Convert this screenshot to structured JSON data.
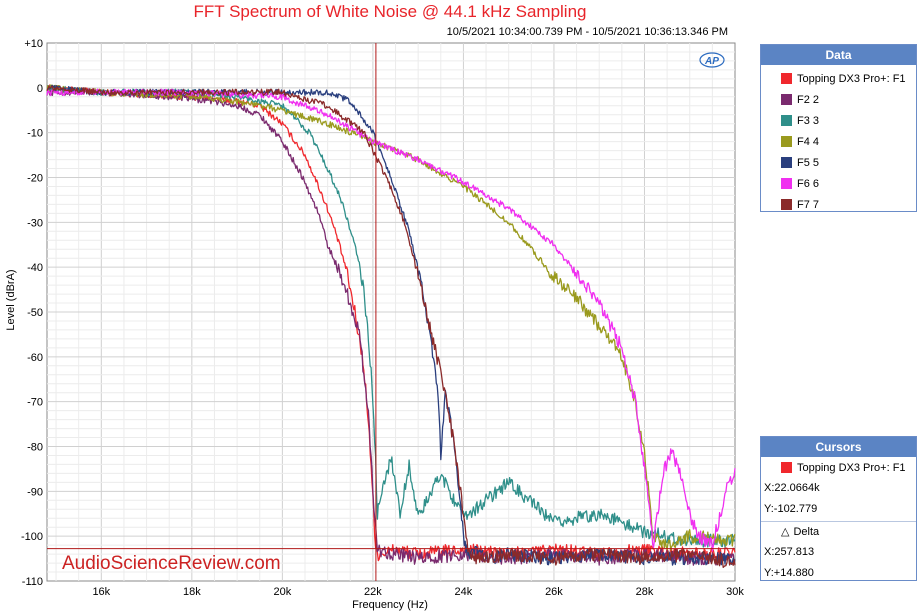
{
  "chart_data": {
    "type": "line",
    "title": "FFT Spectrum of White Noise @ 44.1 kHz Sampling",
    "subtitle": "10/5/2021 10:34:00.739 PM - 10/5/2021 10:36:13.346 PM",
    "xlabel": "Frequency (Hz)",
    "ylabel": "Level (dBrA)",
    "xlim": [
      14800,
      30000
    ],
    "ylim": [
      -110,
      10
    ],
    "xticks": [
      "16k",
      "18k",
      "20k",
      "22k",
      "24k",
      "26k",
      "28k",
      "30k"
    ],
    "xtick_values": [
      16000,
      18000,
      20000,
      22000,
      24000,
      26000,
      28000,
      30000
    ],
    "yticks": [
      "+10",
      "0",
      "-10",
      "-20",
      "-30",
      "-40",
      "-50",
      "-60",
      "-70",
      "-80",
      "-90",
      "-100",
      "-110"
    ],
    "ytick_values": [
      10,
      0,
      -10,
      -20,
      -30,
      -40,
      -50,
      -60,
      -70,
      -80,
      -90,
      -100,
      -110
    ],
    "grid": true,
    "series": [
      {
        "name": "Topping DX3 Pro+: F1",
        "color": "#f0282d",
        "x": [
          14800,
          16000,
          18000,
          19000,
          19500,
          20000,
          20500,
          20800,
          21000,
          21200,
          21400,
          21600,
          21800,
          21900,
          22000,
          22050,
          22100,
          22500,
          23000,
          24000,
          25000,
          26000,
          27000,
          28000,
          29000,
          30000
        ],
        "y": [
          0,
          -1,
          -2,
          -3,
          -4,
          -8,
          -15,
          -22,
          -27,
          -33,
          -40,
          -50,
          -62,
          -75,
          -90,
          -102,
          -104,
          -103,
          -104,
          -103,
          -104,
          -103,
          -104,
          -103,
          -104,
          -104
        ]
      },
      {
        "name": "F2 2",
        "color": "#7a2a6e",
        "x": [
          14800,
          16000,
          17500,
          18500,
          19000,
          19500,
          20000,
          20400,
          20800,
          21000,
          21300,
          21500,
          21700,
          21900,
          22000,
          22100,
          22500,
          23000,
          24000,
          25000,
          26000,
          27000,
          28000,
          29000,
          30000
        ],
        "y": [
          -1,
          -1,
          -2,
          -3,
          -4,
          -6,
          -12,
          -19,
          -28,
          -35,
          -42,
          -48,
          -55,
          -72,
          -90,
          -103,
          -104,
          -105,
          -104,
          -105,
          -104,
          -105,
          -104,
          -105,
          -105
        ]
      },
      {
        "name": "F3 3",
        "color": "#2f8f8a",
        "x": [
          14800,
          16000,
          18000,
          19000,
          20000,
          20600,
          21000,
          21300,
          21600,
          21800,
          21950,
          22050,
          22100,
          22400,
          22600,
          22800,
          23000,
          23500,
          24000,
          25000,
          26000,
          27000,
          28000,
          29000,
          30000
        ],
        "y": [
          0,
          -1,
          -1,
          -2,
          -4,
          -10,
          -18,
          -25,
          -35,
          -45,
          -62,
          -80,
          -95,
          -82,
          -95,
          -84,
          -96,
          -86,
          -96,
          -88,
          -97,
          -95,
          -99,
          -101,
          -101
        ]
      },
      {
        "name": "F4 4",
        "color": "#9a9a1e",
        "x": [
          14800,
          16000,
          18000,
          19000,
          20000,
          21000,
          22000,
          23000,
          24000,
          25000,
          25500,
          26000,
          26500,
          27000,
          27500,
          27800,
          28000,
          28200,
          28500,
          29000,
          30000
        ],
        "y": [
          0,
          -1,
          -2,
          -3,
          -5,
          -8,
          -12,
          -16,
          -22,
          -30,
          -36,
          -42,
          -47,
          -53,
          -60,
          -70,
          -82,
          -100,
          -102,
          -100,
          -101
        ]
      },
      {
        "name": "F5 5",
        "color": "#2a3f7e",
        "x": [
          14800,
          16000,
          18000,
          20000,
          21000,
          21500,
          22000,
          22400,
          22800,
          23100,
          23300,
          23450,
          23500,
          23600,
          23800,
          24000,
          24100,
          24200,
          24500,
          25000,
          26000,
          27000,
          28000,
          29000,
          30000
        ],
        "y": [
          0,
          -1,
          -1,
          -1,
          -1,
          -3,
          -10,
          -20,
          -32,
          -45,
          -58,
          -70,
          -83,
          -68,
          -80,
          -100,
          -104,
          -103,
          -105,
          -104,
          -105,
          -104,
          -105,
          -105,
          -105
        ]
      },
      {
        "name": "F6 6",
        "color": "#f02ff0",
        "x": [
          14800,
          16000,
          18000,
          20000,
          21000,
          22000,
          23000,
          24000,
          25000,
          26000,
          27000,
          27500,
          27800,
          28000,
          28200,
          28400,
          28600,
          28800,
          29000,
          29200,
          29500,
          29800,
          30000
        ],
        "y": [
          -1,
          -1,
          -1,
          -2,
          -6,
          -12,
          -16,
          -21,
          -27,
          -35,
          -48,
          -58,
          -70,
          -85,
          -102,
          -86,
          -81,
          -86,
          -95,
          -100,
          -102,
          -90,
          -86
        ]
      },
      {
        "name": "F7 7",
        "color": "#8a2a2a",
        "x": [
          14800,
          16000,
          18000,
          20000,
          21000,
          21800,
          22300,
          22700,
          23000,
          23300,
          23600,
          23800,
          24000,
          24100,
          24300,
          25000,
          26000,
          27000,
          28000,
          29000,
          30000
        ],
        "y": [
          0,
          -1,
          -1,
          -1,
          -4,
          -10,
          -20,
          -30,
          -42,
          -55,
          -68,
          -80,
          -95,
          -103,
          -105,
          -104,
          -105,
          -104,
          -105,
          -104,
          -106
        ]
      }
    ],
    "cursor": {
      "x": 22066.4,
      "y": -102.779
    },
    "legend_title": "Data",
    "watermark": "AudioScienceReview.com",
    "logo": "AP"
  },
  "cursors_panel": {
    "title": "Cursors",
    "series_label": "Topping DX3 Pro+: F1",
    "series_color": "#f0282d",
    "x_readout": "X:22.0664k",
    "y_readout": "Y:-102.779",
    "delta_label": "Delta",
    "dx_readout": "X:257.813",
    "dy_readout": "Y:+14.880"
  }
}
